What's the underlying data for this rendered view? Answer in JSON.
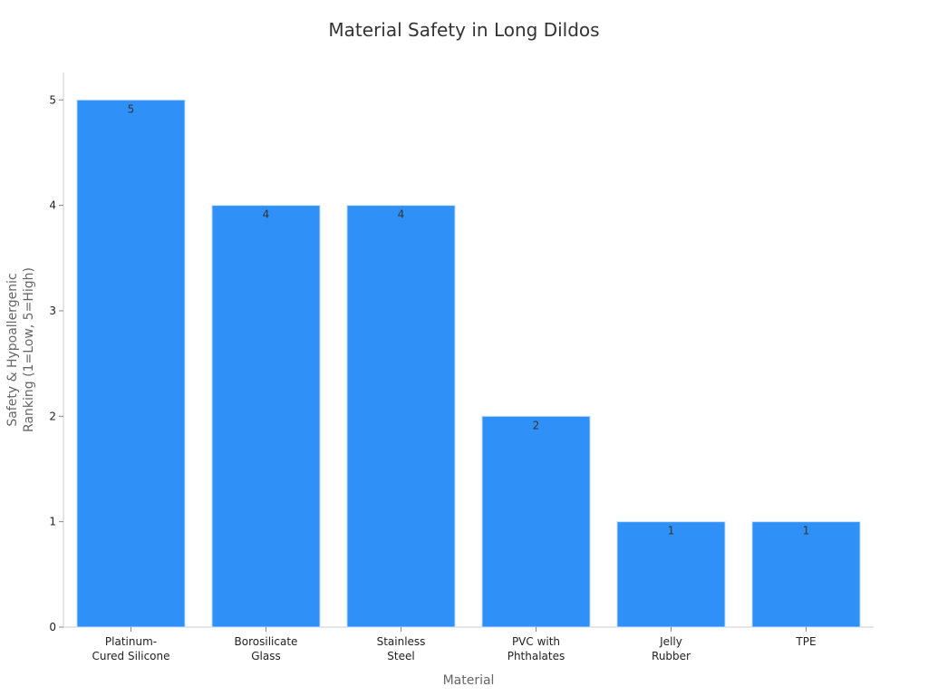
{
  "chart_data": {
    "type": "bar",
    "title": "Material Safety in Long Dildos",
    "xlabel": "Material",
    "ylabel_lines": [
      "Safety & Hypoallergenic",
      "Ranking (1=Low, 5=High)"
    ],
    "categories": [
      [
        "Platinum-",
        "Cured Silicone"
      ],
      [
        "Borosilicate",
        "Glass"
      ],
      [
        "Stainless",
        "Steel"
      ],
      [
        "PVC with",
        "Phthalates"
      ],
      [
        "Jelly",
        "Rubber"
      ],
      [
        "TPE"
      ]
    ],
    "values": [
      5,
      4,
      4,
      2,
      1,
      1
    ],
    "data_labels": [
      "5",
      "4",
      "4",
      "2",
      "1",
      "1"
    ],
    "yticks": [
      0,
      1,
      2,
      3,
      4,
      5
    ],
    "ylim": [
      0,
      5.26
    ],
    "grid": false,
    "bar_color": "#2f91f8"
  }
}
